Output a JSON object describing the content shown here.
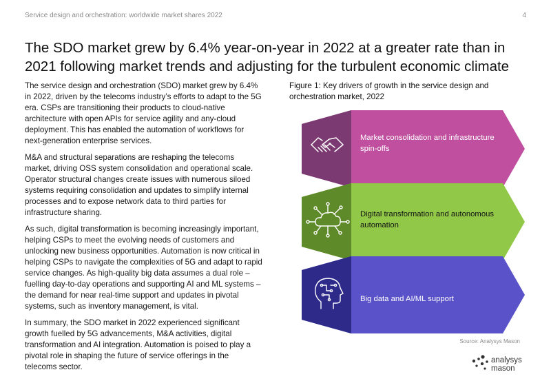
{
  "header": {
    "running_title": "Service design and orchestration: worldwide market shares 2022",
    "page_number": "4"
  },
  "headline": "The SDO market grew by 6.4% year-on-year in 2022 at a greater rate than in 2021 following market trends and adjusting for the turbulent economic climate",
  "body": {
    "paragraphs": [
      "The service design and orchestration (SDO) market grew by 6.4% in 2022, driven by the telecoms industry’s efforts to adapt to the 5G era. CSPs are transitioning their products to cloud-native architecture with open APIs for service agility and any-cloud deployment. This has enabled the automation of workflows for next-generation enterprise services.",
      "M&A and structural separations are reshaping the telecoms market, driving OSS system consolidation and operational scale. Operator structural changes create issues with numerous siloed systems requiring consolidation and updates to simplify internal processes and to expose network data to third parties for infrastructure sharing.",
      "As such, digital transformation is becoming increasingly important, helping CSPs to meet the evolving needs of customers and unlocking new business opportunities. Automation is now critical in helping CSPs to navigate the complexities of 5G and adapt to rapid service changes. As high-quality big data assumes a dual role – fuelling day-to-day operations and supporting AI and ML systems – the demand for near real-time support and updates in pivotal systems, such as inventory management, is vital.",
      "In summary, the SDO market in 2022 experienced significant growth fuelled by 5G advancements, M&A activities, digital transformation and AI integration. Automation is poised to play a pivotal role in shaping the future of service offerings in the telecoms sector."
    ]
  },
  "figure": {
    "caption": "Figure 1: Key drivers of growth in the service design and orchestration market, 2022",
    "drivers": [
      {
        "label": "Market consolidation and infrastructure spin-offs",
        "icon": "handshake-icon",
        "color": "#c0509f",
        "icon_bg": "#7c3a72",
        "text_color": "#ffffff"
      },
      {
        "label": "Digital transformation and autonomous automation",
        "icon": "cloud-network-icon",
        "color": "#92c848",
        "icon_bg": "#5f8a2a",
        "text_color": "#111111"
      },
      {
        "label": "Big data and AI/ML support",
        "icon": "ai-head-icon",
        "color": "#5a52c8",
        "icon_bg": "#2e2a8a",
        "text_color": "#ffffff"
      }
    ],
    "source": "Source: Analysys Mason"
  },
  "logo": {
    "line1": "analysys",
    "line2": "mason"
  }
}
